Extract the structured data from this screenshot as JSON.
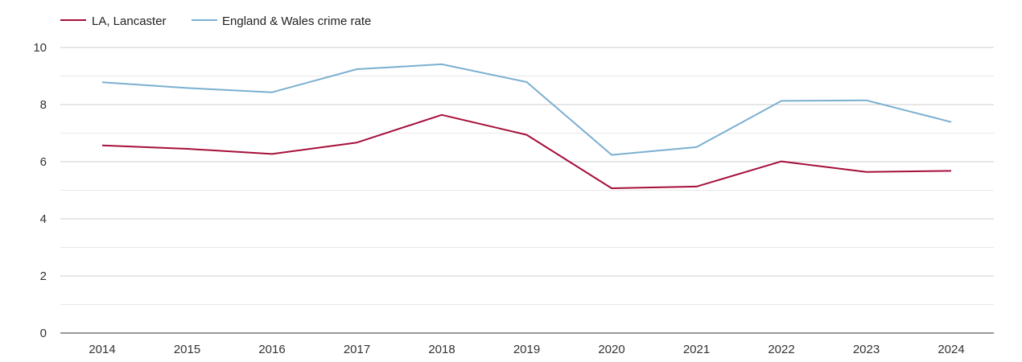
{
  "chart_data": {
    "type": "line",
    "title": "",
    "xlabel": "",
    "ylabel": "",
    "categories": [
      "2014",
      "2015",
      "2016",
      "2017",
      "2018",
      "2019",
      "2020",
      "2021",
      "2022",
      "2023",
      "2024"
    ],
    "ylim": [
      0,
      10
    ],
    "yticks": [
      "0",
      "2",
      "4",
      "6",
      "8",
      "10"
    ],
    "grid": true,
    "legend_position": "top-left",
    "series": [
      {
        "name": "LA, Lancaster",
        "color": "#a50f3a",
        "values": [
          6.57,
          6.45,
          6.27,
          6.67,
          7.64,
          6.94,
          5.07,
          5.13,
          6.01,
          5.64,
          5.68
        ]
      },
      {
        "name": "England & Wales crime rate",
        "color": "#7bafd1",
        "values": [
          8.78,
          8.58,
          8.43,
          9.24,
          9.41,
          8.79,
          6.24,
          6.51,
          8.13,
          8.15,
          7.39
        ]
      }
    ]
  }
}
